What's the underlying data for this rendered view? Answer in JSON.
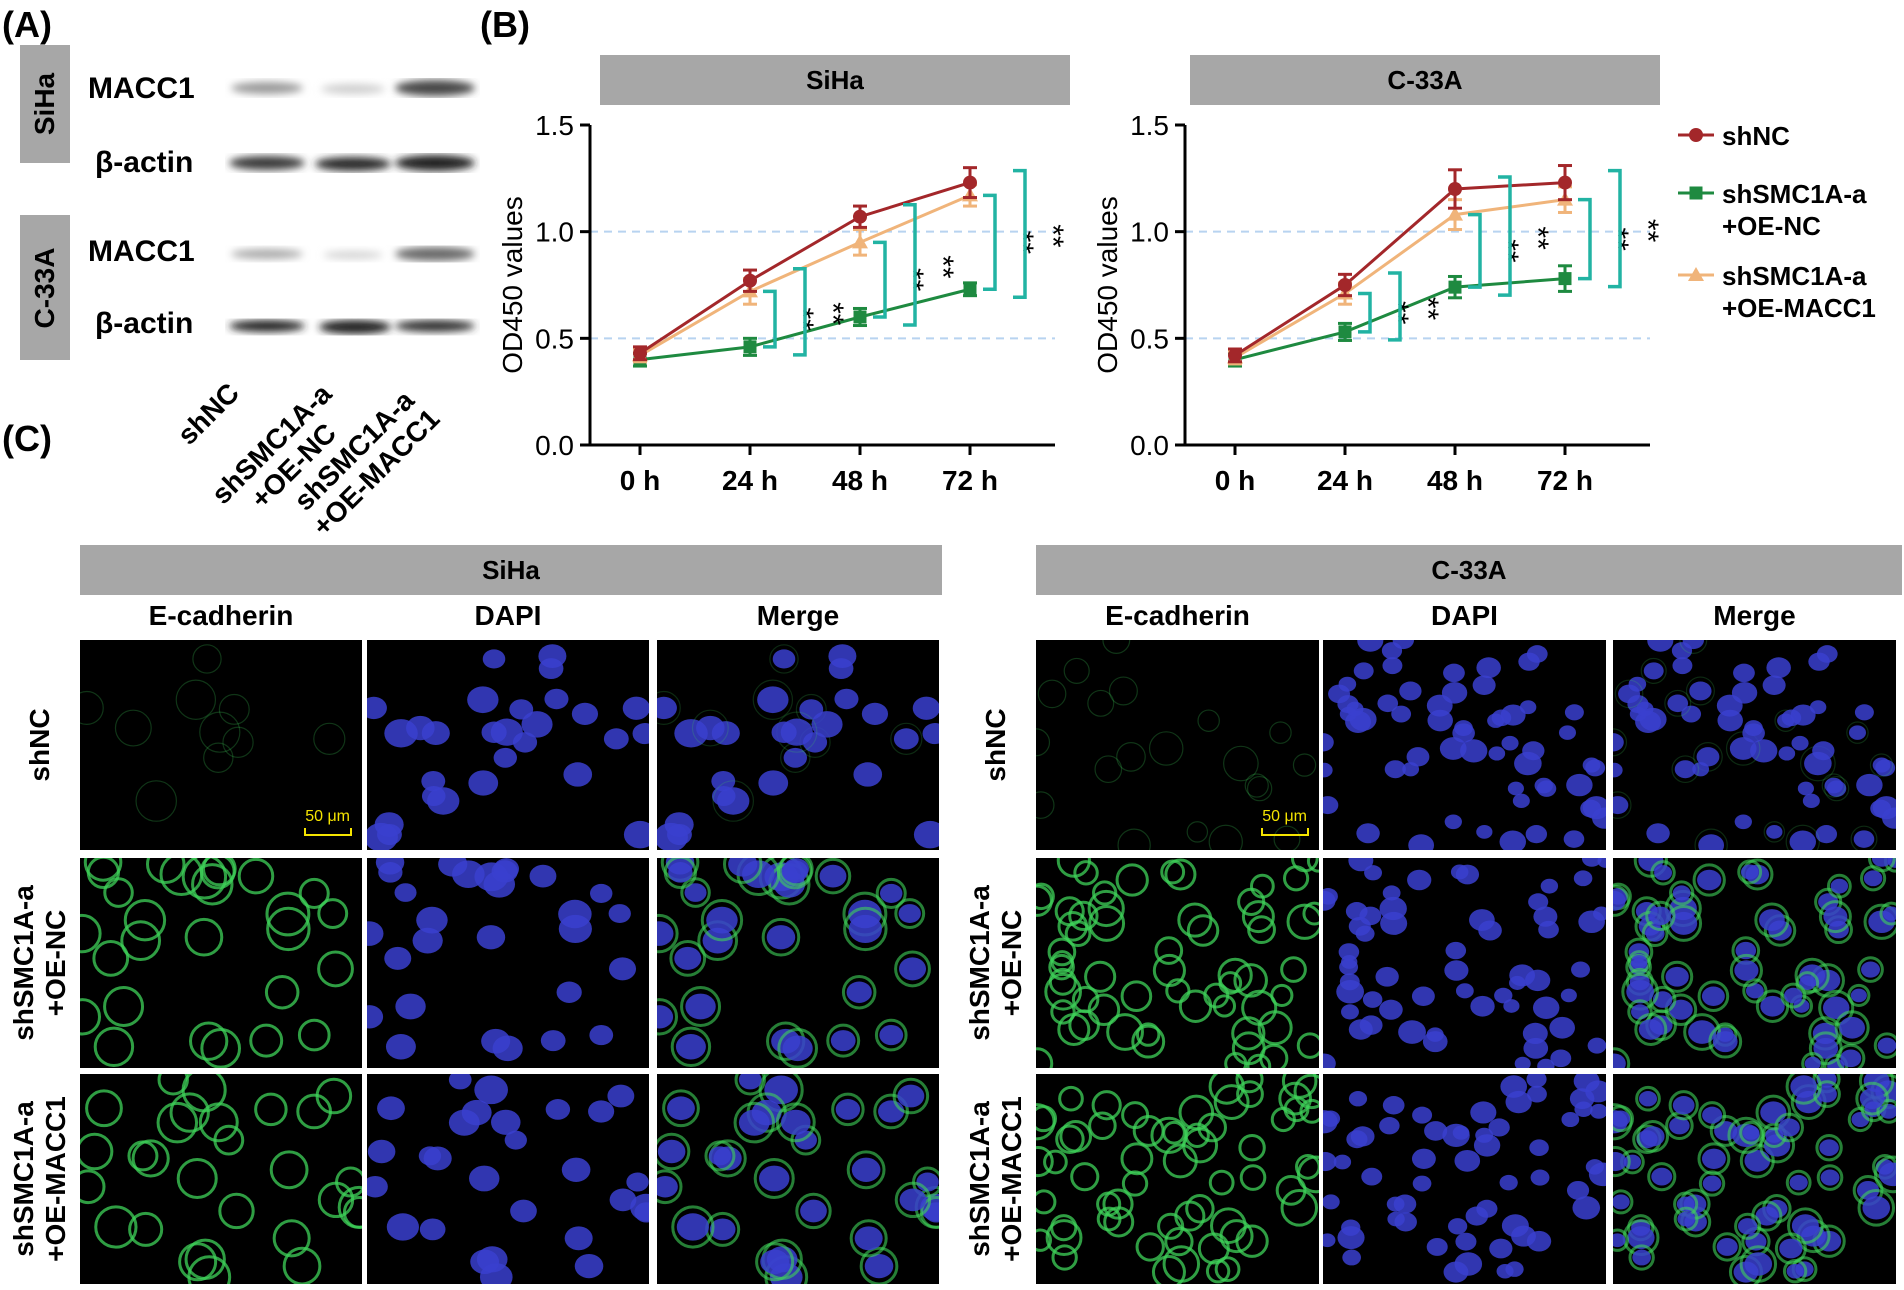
{
  "panels": {
    "a": "(A)",
    "b": "(B)",
    "c": "(C)"
  },
  "blot": {
    "cell_lines": [
      "SiHa",
      "C-33A"
    ],
    "bands": [
      "MACC1",
      "β-actin"
    ],
    "lanes": [
      "shNC",
      "shSMC1A-a\n+OE-NC",
      "shSMC1A-a\n+OE-MACC1"
    ]
  },
  "chart_data": [
    {
      "type": "line",
      "title": "SiHa",
      "ylabel": "OD450 values",
      "xlabel": "",
      "categories": [
        "0 h",
        "24 h",
        "48 h",
        "72 h"
      ],
      "ylim": [
        0,
        1.5
      ],
      "yticks": [
        "0.0",
        "0.5",
        "1.0",
        "1.5"
      ],
      "gridlines": [
        0.5,
        1.0
      ],
      "series": [
        {
          "name": "shNC",
          "color": "#a3272a",
          "marker": "circle",
          "values": [
            0.43,
            0.77,
            1.07,
            1.23
          ],
          "errors": [
            0.03,
            0.05,
            0.05,
            0.07
          ]
        },
        {
          "name": "shSMC1A-a +OE-NC",
          "color": "#1e8a40",
          "marker": "square",
          "values": [
            0.4,
            0.46,
            0.6,
            0.73
          ],
          "errors": [
            0.03,
            0.04,
            0.04,
            0.03
          ]
        },
        {
          "name": "shSMC1A-a +OE-MACC1",
          "color": "#f0b47a",
          "marker": "triangle",
          "values": [
            0.42,
            0.72,
            0.95,
            1.17
          ],
          "errors": [
            0.03,
            0.06,
            0.06,
            0.05
          ]
        }
      ],
      "significance": [
        {
          "category": "24 h",
          "inner": "**",
          "outer": "**"
        },
        {
          "category": "48 h",
          "inner": "**",
          "outer": "**"
        },
        {
          "category": "72 h",
          "inner": "**",
          "outer": "**"
        }
      ]
    },
    {
      "type": "line",
      "title": "C-33A",
      "ylabel": "OD450 values",
      "xlabel": "",
      "categories": [
        "0 h",
        "24 h",
        "48 h",
        "72 h"
      ],
      "ylim": [
        0,
        1.5
      ],
      "yticks": [
        "0.0",
        "0.5",
        "1.0",
        "1.5"
      ],
      "gridlines": [
        0.5,
        1.0
      ],
      "series": [
        {
          "name": "shNC",
          "color": "#a3272a",
          "marker": "circle",
          "values": [
            0.42,
            0.75,
            1.2,
            1.23
          ],
          "errors": [
            0.03,
            0.05,
            0.09,
            0.08
          ]
        },
        {
          "name": "shSMC1A-a +OE-NC",
          "color": "#1e8a40",
          "marker": "square",
          "values": [
            0.4,
            0.53,
            0.74,
            0.78
          ],
          "errors": [
            0.03,
            0.04,
            0.05,
            0.06
          ]
        },
        {
          "name": "shSMC1A-a +OE-MACC1",
          "color": "#f0b47a",
          "marker": "triangle",
          "values": [
            0.41,
            0.71,
            1.08,
            1.15
          ],
          "errors": [
            0.03,
            0.05,
            0.07,
            0.06
          ]
        }
      ],
      "significance": [
        {
          "category": "24 h",
          "inner": "**",
          "outer": "**"
        },
        {
          "category": "48 h",
          "inner": "**",
          "outer": "**"
        },
        {
          "category": "72 h",
          "inner": "**",
          "outer": "**"
        }
      ]
    }
  ],
  "legend": [
    {
      "label": "shNC",
      "color": "#a3272a",
      "marker": "circle"
    },
    {
      "label": "shSMC1A-a\n+OE-NC",
      "color": "#1e8a40",
      "marker": "square"
    },
    {
      "label": "shSMC1A-a\n+OE-MACC1",
      "color": "#f0b47a",
      "marker": "triangle"
    }
  ],
  "if": {
    "cell_lines": [
      "SiHa",
      "C-33A"
    ],
    "columns": [
      "E-cadherin",
      "DAPI",
      "Merge"
    ],
    "rows": [
      "shNC",
      "shSMC1A-a\n+OE-NC",
      "shSMC1A-a\n+OE-MACC1"
    ],
    "scale_bar": "50 μm"
  },
  "colors": {
    "green_stain": "#3fd35a",
    "blue_stain": "#3a3fcf",
    "header_gray": "#a7a7a7",
    "grid": "#b8d3f0",
    "bracket": "#22b3a3"
  }
}
